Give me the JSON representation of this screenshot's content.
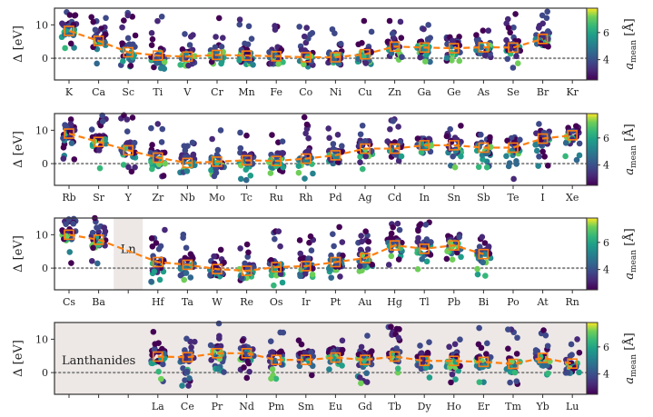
{
  "chart_data": {
    "type": "scatter",
    "title": "",
    "ylabel": "Δ [eV]",
    "ylim": [
      -6.5,
      15
    ],
    "yticks": [
      0,
      10
    ],
    "zero_reference_line": "dotted gray at Δ = 0",
    "median_series": {
      "name": "median",
      "marker": "open square",
      "line": "dashed",
      "color": "#ff7f0e"
    },
    "point_colormap": "viridis",
    "colorbar": {
      "label": "a_mean [Å]",
      "label_main": "a",
      "label_sub": "mean",
      "label_unit": "[Å]",
      "range": [
        2.5,
        7.8
      ],
      "ticks": [
        4,
        6
      ]
    },
    "panels": [
      {
        "name": "period-4",
        "categories": [
          "K",
          "Ca",
          "Sc",
          "Ti",
          "V",
          "Cr",
          "Mn",
          "Fe",
          "Co",
          "Ni",
          "Cu",
          "Zn",
          "Ga",
          "Ge",
          "As",
          "Se",
          "Br",
          "Kr"
        ],
        "median": [
          8.2,
          5.2,
          1.8,
          0.8,
          0.5,
          1.0,
          0.8,
          0.6,
          0.3,
          0.3,
          1.2,
          3.5,
          3.2,
          3.0,
          3.3,
          3.2,
          5.8,
          null
        ],
        "spread": [
          [
            -1.5,
            15
          ],
          [
            -1.8,
            13.5
          ],
          [
            -5.8,
            13.7
          ],
          [
            -3.5,
            12.7
          ],
          [
            -3,
            7.8
          ],
          [
            -2,
            14
          ],
          [
            -2.5,
            13
          ],
          [
            -2.5,
            10.5
          ],
          [
            -2.8,
            12
          ],
          [
            -3,
            9
          ],
          [
            -2,
            11.5
          ],
          [
            -1.5,
            11.5
          ],
          [
            -2,
            11.5
          ],
          [
            -2.5,
            11.5
          ],
          [
            -2,
            14
          ],
          [
            -3.5,
            14
          ],
          [
            -1.5,
            14.5
          ],
          null
        ],
        "shaded": false
      },
      {
        "name": "period-5",
        "categories": [
          "Rb",
          "Sr",
          "Y",
          "Zr",
          "Nb",
          "Mo",
          "Tc",
          "Ru",
          "Rh",
          "Pd",
          "Ag",
          "Cd",
          "In",
          "Sn",
          "Sb",
          "Te",
          "I",
          "Xe"
        ],
        "median": [
          9.0,
          6.5,
          4.0,
          1.8,
          0.2,
          0.6,
          1.0,
          0.8,
          1.5,
          2.5,
          4.5,
          4.5,
          5.5,
          5.5,
          4.8,
          4.8,
          7.5,
          8.5
        ],
        "spread": [
          [
            0.5,
            13.5
          ],
          [
            -2,
            14.5
          ],
          [
            -3.5,
            14.5
          ],
          [
            -4.5,
            13.5
          ],
          [
            -3.5,
            7.5
          ],
          [
            -4,
            12.8
          ],
          [
            -5.5,
            11.5
          ],
          [
            -3.5,
            9.5
          ],
          [
            -4.5,
            14
          ],
          [
            -2,
            11
          ],
          [
            -2,
            12.5
          ],
          [
            -1,
            14.5
          ],
          [
            2.5,
            7.5
          ],
          [
            -1.5,
            11.5
          ],
          [
            -1.5,
            11
          ],
          [
            -7,
            10.5
          ],
          [
            -1,
            14.5
          ],
          [
            0,
            12
          ]
        ],
        "shaded": false
      },
      {
        "name": "period-6",
        "categories": [
          "Cs",
          "Ba",
          "",
          "Hf",
          "Ta",
          "W",
          "Re",
          "Os",
          "Ir",
          "Pt",
          "Au",
          "Hg",
          "Tl",
          "Pb",
          "Bi",
          "Po",
          "At",
          "Rn"
        ],
        "median": [
          10.0,
          8.5,
          null,
          1.8,
          1.0,
          -0.3,
          -0.8,
          0.3,
          0.6,
          1.8,
          3.0,
          6.8,
          5.8,
          6.8,
          4.2,
          null,
          null,
          null
        ],
        "spread": [
          [
            1,
            15
          ],
          [
            -0.8,
            15
          ],
          null,
          [
            -4.5,
            15
          ],
          [
            -4.5,
            11.5
          ],
          [
            -4.5,
            8.2
          ],
          [
            -5,
            7.5
          ],
          [
            -5.5,
            15
          ],
          [
            -4,
            10.5
          ],
          [
            -3.5,
            13
          ],
          [
            -2,
            12.5
          ],
          [
            0.5,
            15
          ],
          [
            -0.5,
            14
          ],
          [
            2,
            14.5
          ],
          [
            -4,
            11
          ],
          null,
          null,
          null
        ],
        "shaded_region": {
          "category_index": 2,
          "label": "Ln"
        },
        "shaded": false
      },
      {
        "name": "lanthanides",
        "categories": [
          "",
          "",
          "",
          "La",
          "Ce",
          "Pr",
          "Nd",
          "Pm",
          "Sm",
          "Eu",
          "Gd",
          "Tb",
          "Dy",
          "Ho",
          "Er",
          "Tm",
          "Yb",
          "Lu"
        ],
        "median": [
          null,
          null,
          null,
          4.8,
          4.6,
          5.8,
          5.8,
          3.8,
          3.8,
          4.5,
          3.8,
          4.8,
          3.5,
          3.5,
          3.2,
          2.6,
          4.4,
          2.7
        ],
        "spread": [
          null,
          null,
          null,
          [
            -3,
            12.5
          ],
          [
            -4.5,
            11
          ],
          [
            -2,
            15
          ],
          [
            -2,
            15
          ],
          [
            -2,
            12.5
          ],
          [
            -2,
            10.5
          ],
          [
            0,
            10
          ],
          [
            -3.5,
            11.5
          ],
          [
            -1,
            15
          ],
          [
            -3,
            12
          ],
          [
            -3,
            11
          ],
          [
            -3.5,
            14.5
          ],
          [
            -3.5,
            14.5
          ],
          [
            -1.5,
            14.5
          ],
          [
            -2,
            12
          ]
        ],
        "annotation": "Lanthanides",
        "shaded": true
      }
    ]
  }
}
